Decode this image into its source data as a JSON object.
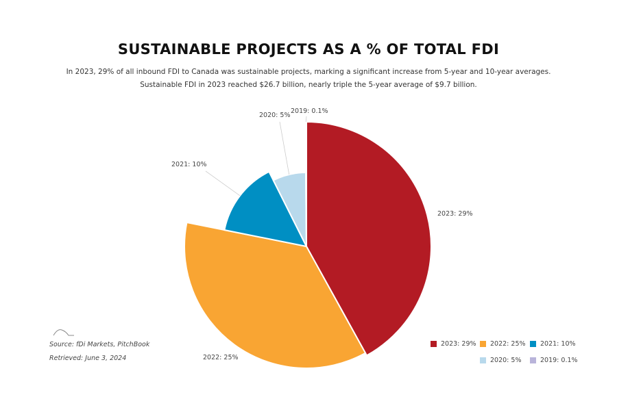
{
  "chart_data": {
    "type": "pie",
    "title": "SUSTAINABLE PROJECTS AS A % OF TOTAL FDI",
    "subtitle": "In 2023, 29% of all inbound FDI to Canada was sustainable projects, marking a significant increase from 5-year and 10-year averages. Sustainable FDI in 2023 reached $26.7 billion, nearly triple the 5-year average of $9.7 billion.",
    "categories": [
      "2023",
      "2022",
      "2021",
      "2020",
      "2019"
    ],
    "values": [
      29,
      25,
      10,
      5,
      0.1
    ],
    "labels": [
      "2023: 29%",
      "2022: 25%",
      "2021: 10%",
      "2020: 5%",
      "2019: 0.1%"
    ],
    "colors": [
      "#b31b24",
      "#f9a533",
      "#008fc3",
      "#b8d9ec",
      "#b9b4da"
    ],
    "legend_position": "bottom-right"
  },
  "source": "Source: fDi Markets, PitchBook",
  "retrieved": "Retrieved: June 3, 2024"
}
